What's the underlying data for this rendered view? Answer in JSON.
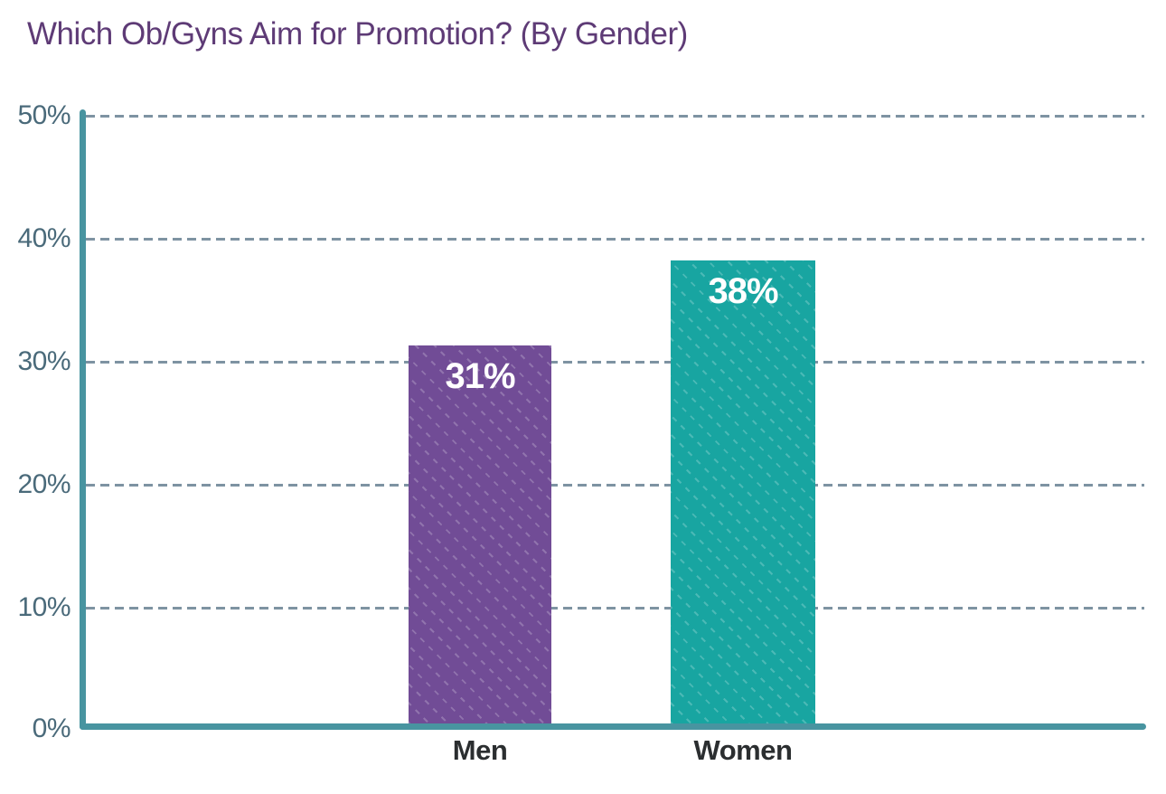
{
  "page": {
    "background": "#ffffff"
  },
  "chart_data": {
    "type": "bar",
    "title": "Which Ob/Gyns Aim for Promotion? (By Gender)",
    "categories": [
      "Men",
      "Women"
    ],
    "values": [
      31,
      38
    ],
    "value_labels": [
      "31%",
      "38%"
    ],
    "xlabel": "",
    "ylabel": "",
    "ylim": [
      0,
      50
    ],
    "yticks": [
      "0%",
      "10%",
      "20%",
      "30%",
      "40%",
      "50%"
    ],
    "grid": "horizontal-dashed",
    "legend": "none",
    "bar_colors": [
      "#714C96",
      "#18A5A1"
    ],
    "colors": {
      "title": "#5E3B76",
      "axis": "#4894A0",
      "gridline": "#7E93A2",
      "tick_label": "#4A6A7A",
      "category_label": "#2B2E30",
      "value_label": "#FFFFFF"
    }
  }
}
